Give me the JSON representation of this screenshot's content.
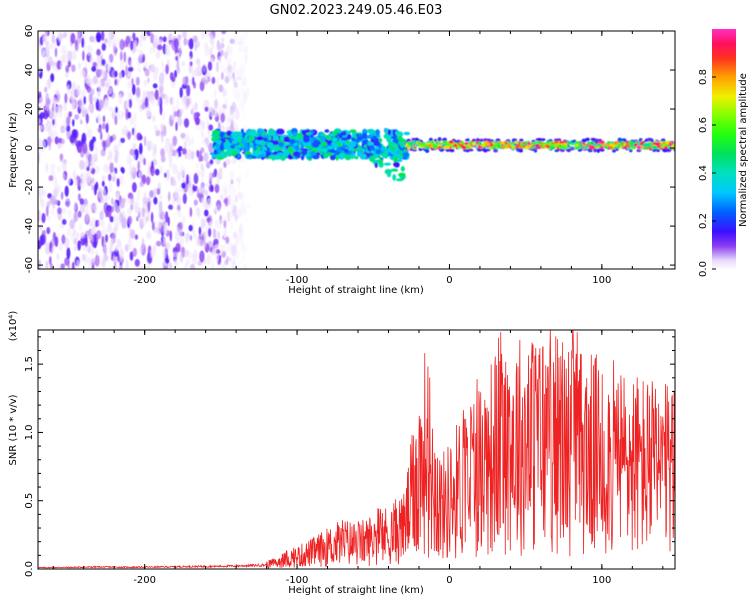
{
  "title": "GN02.2023.249.05.46.E03",
  "colors": {
    "snr_line": "#ee2222",
    "axis": "#000000",
    "background": "#ffffff"
  },
  "chart_data": [
    {
      "type": "heatmap",
      "title": "GN02.2023.249.05.46.E03",
      "xlabel": "Height of straight line (km)",
      "ylabel": "Frequency (Hz)",
      "xlim": [
        -270,
        148
      ],
      "ylim": [
        -62,
        60
      ],
      "xticks": [
        -200,
        -100,
        0,
        100
      ],
      "xtick_labels": [
        "-200",
        "-100",
        "0",
        "100"
      ],
      "yticks": [
        -60,
        -40,
        -20,
        0,
        20,
        40,
        60
      ],
      "ytick_labels": [
        "-60",
        "-40",
        "-20",
        "0",
        "20",
        "40",
        "60"
      ],
      "grid": false,
      "colorbar": {
        "label": "Normalized spectral amplitude",
        "range": [
          0,
          1
        ],
        "ticks": [
          0.0,
          0.2,
          0.4,
          0.6,
          0.8
        ],
        "tick_labels": [
          "0.0",
          "0.2",
          "0.4",
          "0.6",
          "0.8"
        ],
        "colormap": "gist_ncar-like (white, violet, blue, cyan, green, yellow, orange, red, magenta)"
      },
      "regions": [
        {
          "x": [
            -270,
            -132
          ],
          "freq_range": [
            -62,
            60
          ],
          "amplitude": [
            0.02,
            0.15
          ],
          "pattern": "broadband scattered noise"
        },
        {
          "x": [
            -155,
            -28
          ],
          "freq_center": 2,
          "freq_halfwidth": 7,
          "amplitude": [
            0.15,
            0.5
          ],
          "pattern": "mixed signal with branches down to -22 Hz near x=-60 to -30"
        },
        {
          "x": [
            -28,
            148
          ],
          "freq_center": 1.5,
          "freq_halfwidth": 3,
          "amplitude": [
            0.4,
            1.0
          ],
          "pattern": "narrow coherent band near 0 Hz"
        }
      ]
    },
    {
      "type": "line",
      "xlabel": "Height of straight line (km)",
      "ylabel": "SNR (10 * v/v)",
      "yscale_label": "(x10⁴)",
      "xlim": [
        -270,
        148
      ],
      "ylim": [
        0,
        17500
      ],
      "xticks": [
        -200,
        -100,
        0,
        100
      ],
      "xtick_labels": [
        "-200",
        "-100",
        "0",
        "100"
      ],
      "yticks": [
        0,
        5000,
        10000,
        15000
      ],
      "ytick_labels": [
        "0.0",
        "0.5",
        "1.0",
        "1.5"
      ],
      "grid": false,
      "series": [
        {
          "x": [
            -270,
            -250,
            -230,
            -210,
            -190,
            -170,
            -150,
            -130,
            -120,
            -110,
            -100,
            -90,
            -80,
            -70,
            -60,
            -50,
            -40,
            -30,
            -25,
            -20,
            -15,
            -10,
            -5,
            0,
            10,
            20,
            30,
            40,
            50,
            60,
            70,
            80,
            90,
            100,
            110,
            120,
            130,
            140,
            148
          ],
          "values": [
            100,
            120,
            150,
            130,
            150,
            180,
            200,
            250,
            300,
            600,
            900,
            1200,
            1600,
            2000,
            1800,
            2200,
            2500,
            3000,
            5000,
            7000,
            9000,
            6000,
            4500,
            5000,
            6500,
            7500,
            8500,
            9500,
            9000,
            9500,
            9200,
            8800,
            8500,
            8200,
            8000,
            7800,
            7500,
            7200,
            7000
          ],
          "peak": {
            "x": 81,
            "y": 17500
          },
          "note": "noisy trace; rapid oscillation around this envelope"
        }
      ]
    }
  ]
}
